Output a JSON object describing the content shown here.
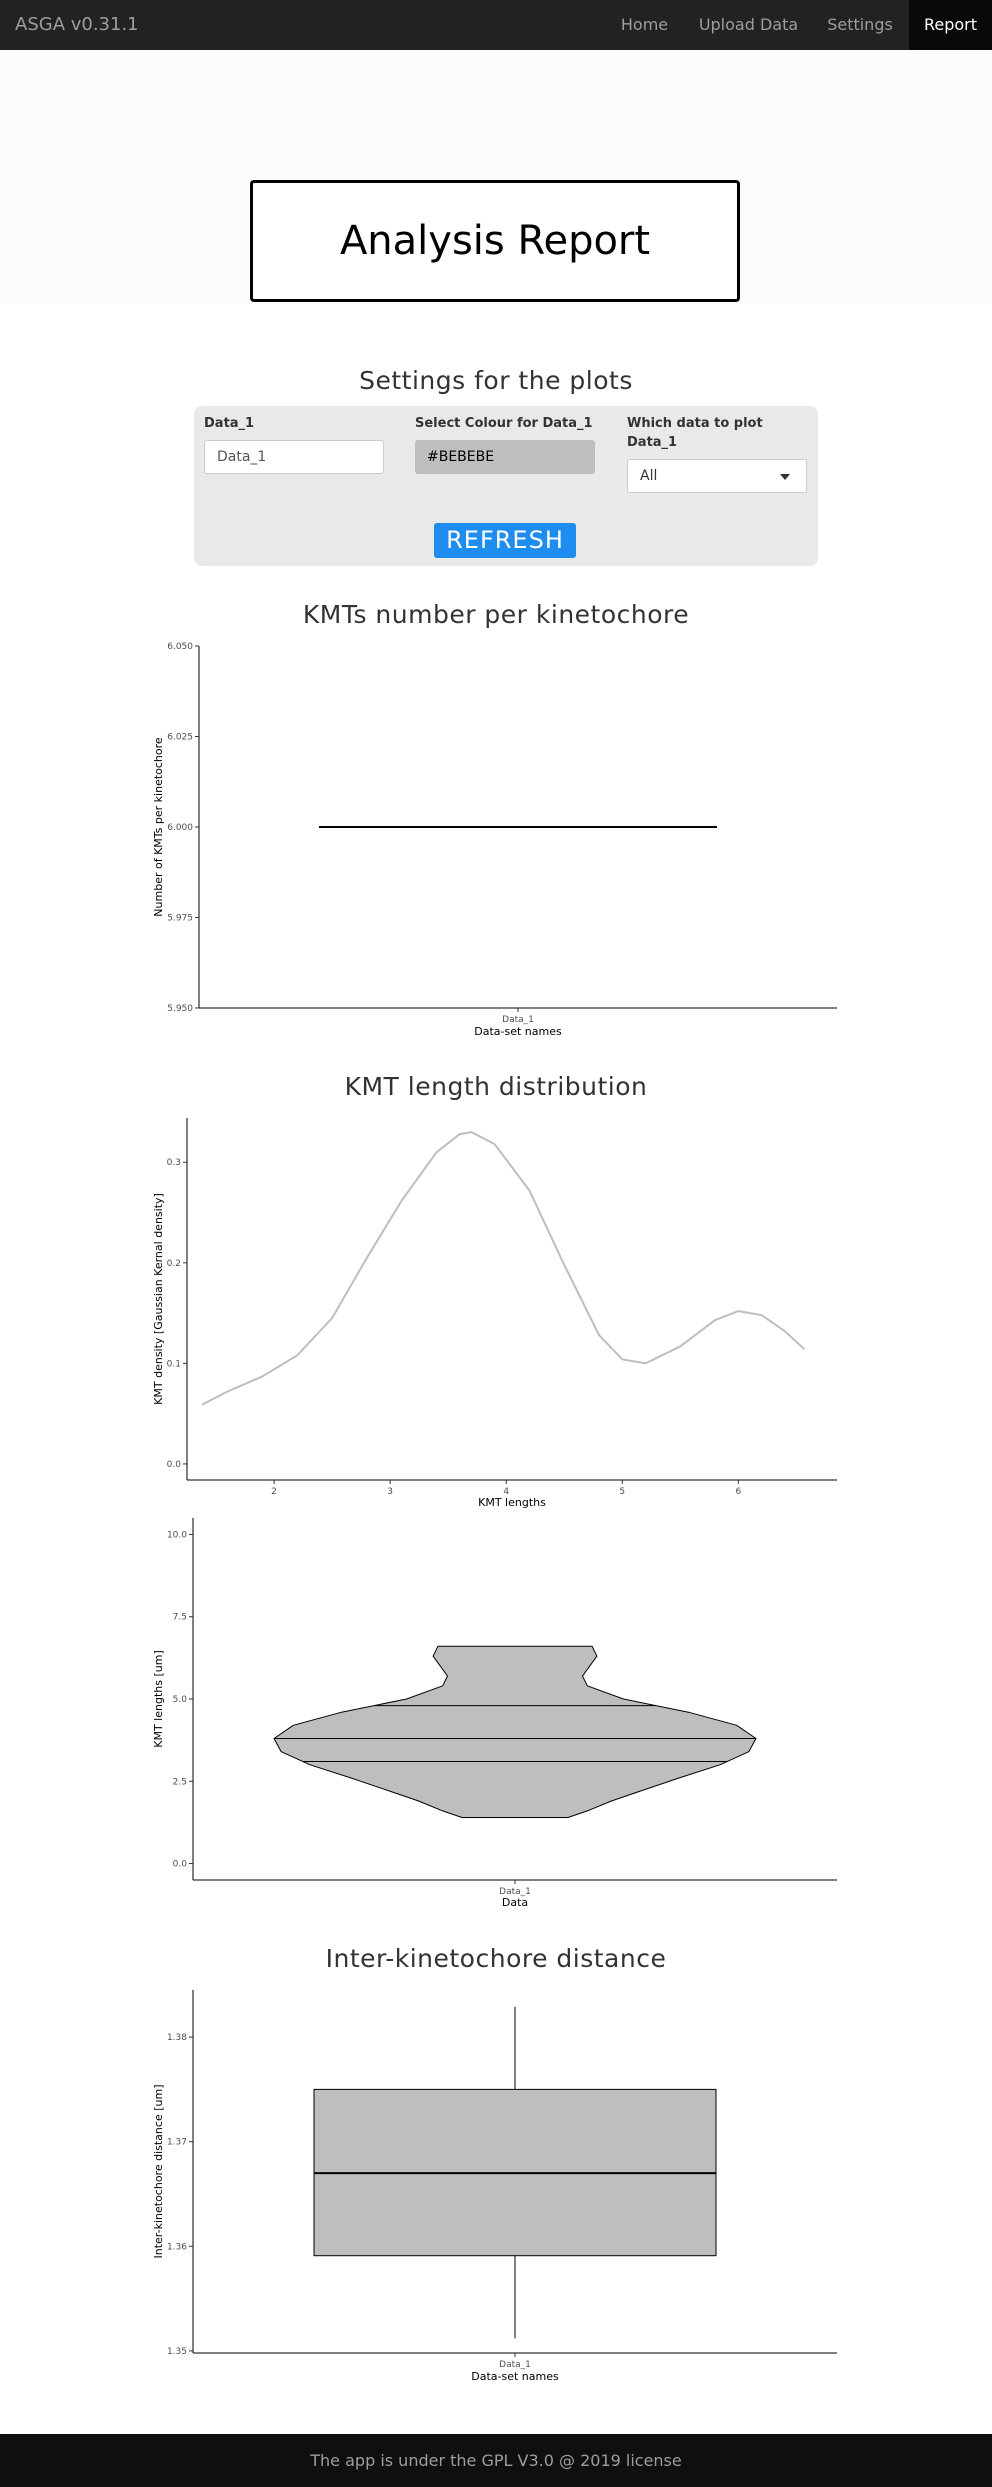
{
  "navbar": {
    "brand": "ASGA v0.31.1",
    "items": [
      {
        "label": "Home",
        "active": false
      },
      {
        "label": "Upload Data",
        "active": false
      },
      {
        "label": "Settings",
        "active": false
      },
      {
        "label": "Report",
        "active": true
      }
    ]
  },
  "report": {
    "title": "Analysis Report"
  },
  "settings": {
    "title": "Settings for the plots",
    "dataset_label": "Data_1",
    "dataset_placeholder": "Data_1",
    "colour_label": "Select Colour for Data_1",
    "colour_value": "#BEBEBE",
    "which_label_line1": "Which data to plot",
    "which_label_line2": "Data_1",
    "which_value": "All",
    "refresh_label": "REFRESH"
  },
  "sections": {
    "kmt_number_title": "KMTs number per kinetochore",
    "kmt_length_title": "KMT length distribution",
    "inter_kinetochore_title": "Inter-kinetochore distance"
  },
  "colors": {
    "navbar_bg": "#222222",
    "accent": "#1f8cf0",
    "plot_fill": "#BEBEBE",
    "panel_bg": "#e9e9e9"
  },
  "chart_data": [
    {
      "type": "line",
      "xlabel": "Data-set names",
      "ylabel": "Number of KMTs per kinetochore",
      "categories": [
        "Data_1"
      ],
      "yticks": [
        "5.950",
        "5.975",
        "6.000",
        "6.025",
        "6.050"
      ],
      "ylim": [
        5.95,
        6.05
      ],
      "series": [
        {
          "values": [
            6.0
          ]
        }
      ]
    },
    {
      "type": "area",
      "xlabel": "KMT lengths",
      "ylabel": "KMT density [Gaussian Kernal density]",
      "xticks": [
        "2",
        "3",
        "4",
        "5",
        "6"
      ],
      "yticks": [
        "0.0",
        "0.1",
        "0.2",
        "0.3"
      ],
      "xlim": [
        1.25,
        6.85
      ],
      "ylim": [
        -0.016,
        0.344
      ],
      "x": [
        1.38,
        1.6,
        1.9,
        2.2,
        2.5,
        2.8,
        3.1,
        3.4,
        3.6,
        3.7,
        3.9,
        4.2,
        4.5,
        4.8,
        5.0,
        5.2,
        5.5,
        5.8,
        6.0,
        6.2,
        6.4,
        6.57
      ],
      "y": [
        0.059,
        0.072,
        0.087,
        0.108,
        0.145,
        0.205,
        0.262,
        0.31,
        0.328,
        0.33,
        0.318,
        0.272,
        0.198,
        0.128,
        0.104,
        0.1,
        0.117,
        0.143,
        0.152,
        0.148,
        0.132,
        0.114
      ]
    },
    {
      "type": "violin",
      "xlabel": "Data",
      "ylabel": "KMT lengths [um]",
      "categories": [
        "Data_1"
      ],
      "yticks": [
        "0.0",
        "2.5",
        "5.0",
        "7.5",
        "10.0"
      ],
      "ylim": [
        -0.5,
        10.5
      ],
      "profile_y": [
        1.4,
        1.6,
        1.9,
        2.2,
        2.6,
        3.0,
        3.4,
        3.8,
        4.2,
        4.6,
        5.0,
        5.4,
        5.7,
        6.0,
        6.3,
        6.6
      ],
      "profile_width": [
        0.22,
        0.3,
        0.4,
        0.52,
        0.68,
        0.85,
        0.97,
        1.0,
        0.92,
        0.72,
        0.45,
        0.3,
        0.28,
        0.31,
        0.34,
        0.32
      ],
      "quantiles": [
        3.1,
        3.8,
        4.8
      ]
    },
    {
      "type": "box",
      "xlabel": "Data-set names",
      "ylabel": "Inter-kinetochore distance [um]",
      "categories": [
        "Data_1"
      ],
      "yticks": [
        "1.35",
        "1.36",
        "1.37",
        "1.38"
      ],
      "ylim": [
        1.3498,
        1.3845
      ],
      "min": 1.3512,
      "q1": 1.3591,
      "median": 1.367,
      "q3": 1.375,
      "max": 1.3829
    }
  ],
  "footer": {
    "text": "The app is under the GPL V3.0 @ 2019 license"
  }
}
